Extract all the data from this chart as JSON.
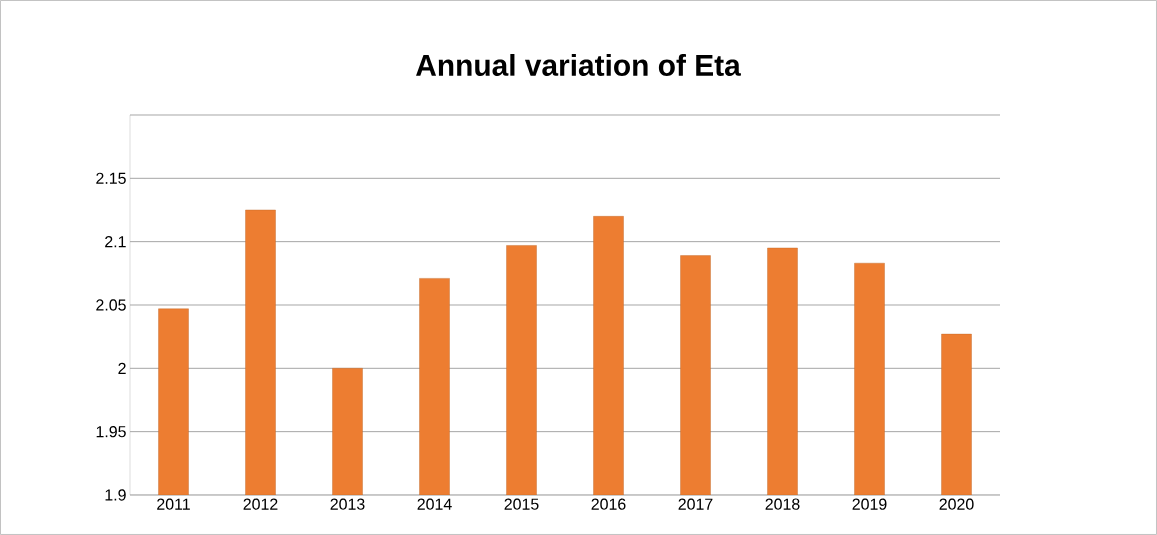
{
  "chart_data": {
    "type": "bar",
    "title": "Annual variation of Eta",
    "categories": [
      "2011",
      "2012",
      "2013",
      "2014",
      "2015",
      "2016",
      "2017",
      "2018",
      "2019",
      "2020"
    ],
    "values": [
      2.047,
      2.125,
      2.0,
      2.071,
      2.097,
      2.12,
      2.089,
      2.095,
      2.083,
      2.027
    ],
    "color": "#ed7d31",
    "ylim": [
      1.9,
      2.2
    ],
    "yticks": [
      1.9,
      1.95,
      2,
      2.05,
      2.1,
      2.15,
      {
        "value": 2.2,
        "label": null
      }
    ],
    "grid": "y"
  }
}
